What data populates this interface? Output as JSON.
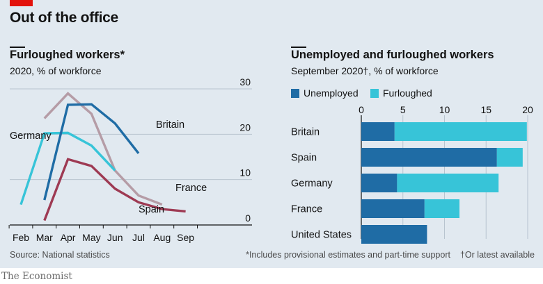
{
  "headline": "Out of the office",
  "source": "Source: National statistics",
  "footnotes": [
    "*Includes provisional estimates and part-time support",
    "†Or latest available"
  ],
  "brand": "The Economist",
  "colors": {
    "britain": "#1f6ca5",
    "germany": "#37c4d8",
    "france": "#b59ca6",
    "spain": "#9e3a53",
    "unemployed": "#1f6ca5",
    "furloughed": "#37c4d8"
  },
  "chart_data": [
    {
      "type": "line",
      "title": "Furloughed workers*",
      "subtitle": "2020, % of workforce",
      "x": [
        "Feb",
        "Mar",
        "Apr",
        "May",
        "Jun",
        "Jul",
        "Aug",
        "Sep"
      ],
      "ylim": [
        0,
        30
      ],
      "yticks": [
        "30",
        "20",
        "10",
        "0"
      ],
      "grid": true,
      "series": [
        {
          "name": "Britain",
          "key": "britain",
          "points": [
            [
              "Mar",
              5.5
            ],
            [
              "Apr",
              26.5
            ],
            [
              "May",
              26.6
            ],
            [
              "Jun",
              22.4
            ],
            [
              "Jul",
              15.8
            ]
          ]
        },
        {
          "name": "Germany",
          "key": "germany",
          "points": [
            [
              "Feb",
              4.5
            ],
            [
              "Mar",
              20.2
            ],
            [
              "Apr",
              20.3
            ],
            [
              "May",
              17.5
            ],
            [
              "Jun",
              12.0
            ]
          ]
        },
        {
          "name": "France",
          "key": "france",
          "points": [
            [
              "Mar",
              23.5
            ],
            [
              "Apr",
              29.0
            ],
            [
              "May",
              24.5
            ],
            [
              "Jun",
              12.0
            ],
            [
              "Jul",
              6.5
            ],
            [
              "Aug",
              4.5
            ]
          ]
        },
        {
          "name": "Spain",
          "key": "spain",
          "points": [
            [
              "Mar",
              1.0
            ],
            [
              "Apr",
              14.5
            ],
            [
              "May",
              13.0
            ],
            [
              "Jun",
              8.0
            ],
            [
              "Jul",
              5.0
            ],
            [
              "Aug",
              3.5
            ],
            [
              "Sep",
              3.0
            ]
          ]
        }
      ]
    },
    {
      "type": "bar",
      "orientation": "horizontal",
      "stacked": true,
      "title": "Unemployed and furloughed workers",
      "subtitle": "September 2020†, % of workforce",
      "categories": [
        "Britain",
        "Spain",
        "Germany",
        "France",
        "United States"
      ],
      "xlim": [
        0,
        20
      ],
      "xticks": [
        "0",
        "5",
        "10",
        "15",
        "20"
      ],
      "legend": "top",
      "series": [
        {
          "name": "Unemployed",
          "key": "unemployed",
          "values": [
            4.0,
            16.3,
            4.3,
            7.6,
            7.9
          ]
        },
        {
          "name": "Furloughed",
          "key": "furloughed",
          "values": [
            15.9,
            3.1,
            12.2,
            4.2,
            0
          ]
        }
      ]
    }
  ]
}
